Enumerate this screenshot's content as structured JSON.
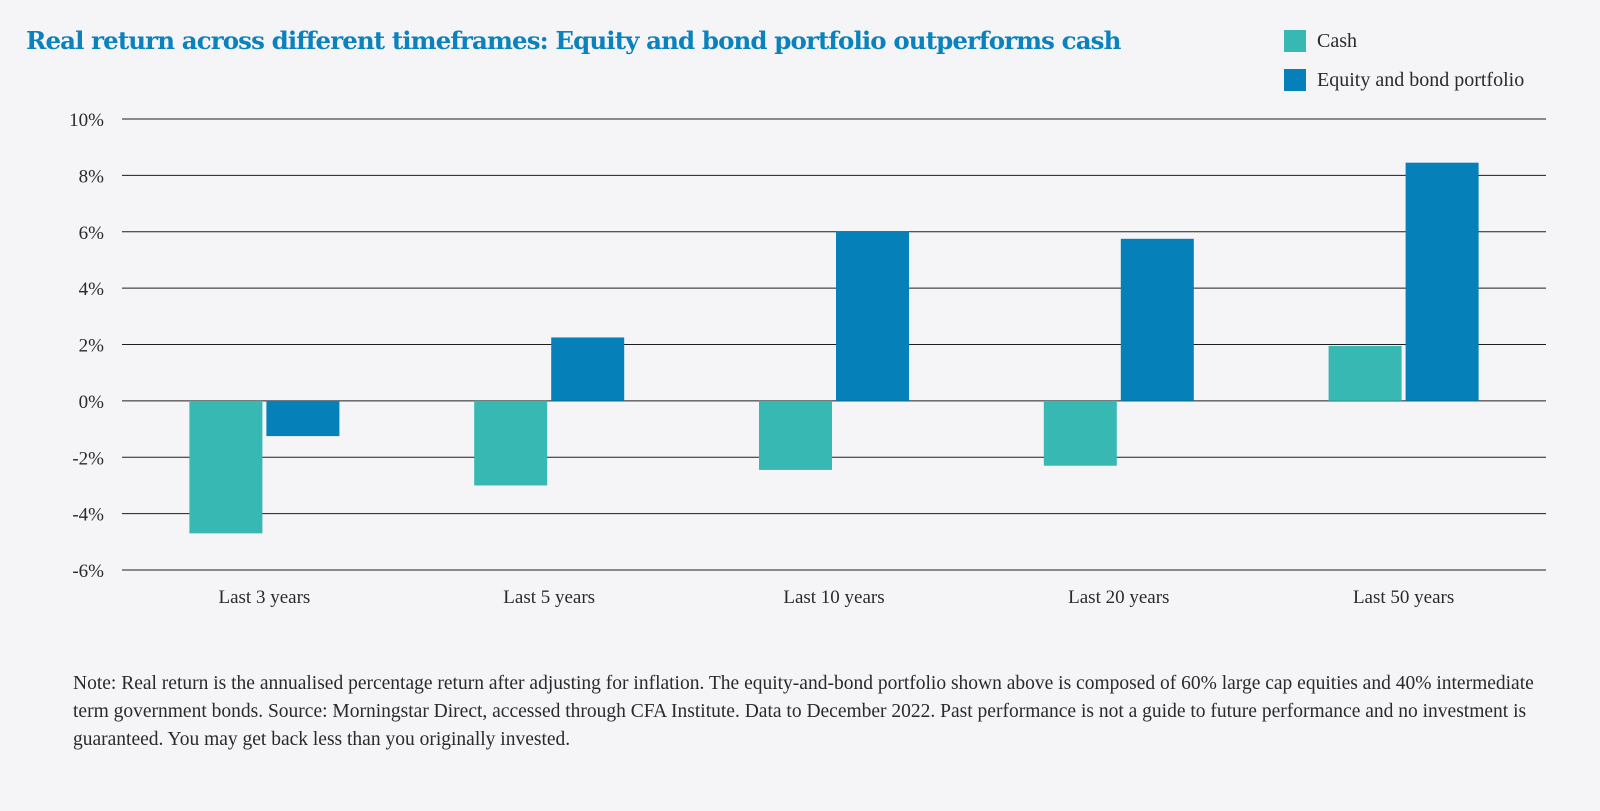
{
  "chart_data": {
    "type": "bar",
    "title": "Real return across different timeframes: Equity and bond portfolio outperforms cash",
    "xlabel": "",
    "ylabel": "",
    "categories": [
      "Last 3 years",
      "Last 5 years",
      "Last 10 years",
      "Last 20 years",
      "Last 50 years"
    ],
    "series": [
      {
        "name": "Cash",
        "color": "#37b8b2",
        "values": [
          -4.7,
          -3.0,
          -2.45,
          -2.3,
          1.95
        ]
      },
      {
        "name": "Equity and bond portfolio",
        "color": "#0580b8",
        "values": [
          -1.25,
          2.25,
          6.0,
          5.75,
          8.45
        ]
      }
    ],
    "ylim": [
      -6,
      10
    ],
    "yticks": [
      10,
      8,
      6,
      4,
      2,
      0,
      -2,
      -4,
      -6
    ],
    "ytick_labels": [
      "10%",
      "8%",
      "6%",
      "4%",
      "2%",
      "0%",
      "-2%",
      "-4%",
      "-6%"
    ],
    "grid": true,
    "legend_position": "top-right"
  },
  "note": "Note: Real return is the annualised percentage return after adjusting for inflation. The equity-and-bond portfolio shown above is composed of 60% large cap equities and 40% intermediate term government bonds. Source: Morningstar Direct, accessed through CFA Institute. Data to December 2022. Past performance is not a guide to future performance and no investment is guaranteed. You may get back less than you originally invested."
}
